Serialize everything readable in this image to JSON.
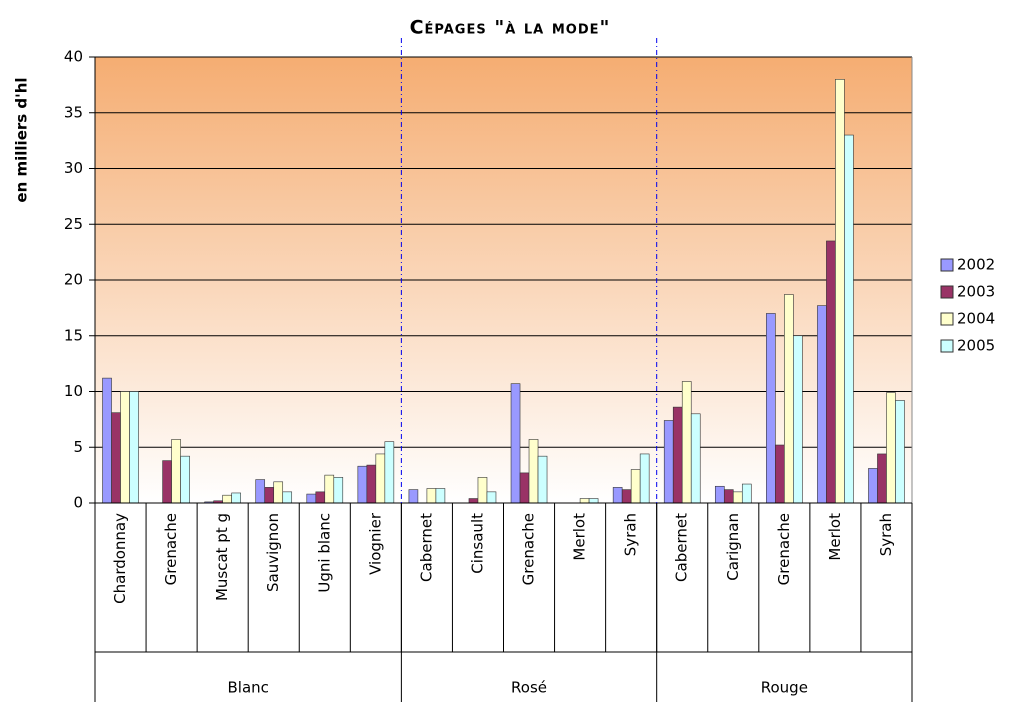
{
  "chart_data": {
    "type": "bar",
    "title": "Cépages \"à la mode\"",
    "y_label": "en milliers d'hl",
    "groups": [
      {
        "name": "Blanc",
        "categories": [
          "Chardonnay",
          "Grenache",
          "Muscat pt g",
          "Sauvignon",
          "Ugni blanc",
          "Viognier"
        ]
      },
      {
        "name": "Rosé",
        "categories": [
          "Cabernet",
          "Cinsault",
          "Grenache",
          "Merlot",
          "Syrah"
        ]
      },
      {
        "name": "Rouge",
        "categories": [
          "Cabernet",
          "Carignan",
          "Grenache",
          "Merlot",
          "Syrah"
        ]
      }
    ],
    "series": [
      {
        "name": "2002",
        "color": "#9999ff",
        "values": [
          11.2,
          0,
          0.1,
          2.1,
          0.8,
          3.3,
          1.2,
          0,
          10.7,
          0,
          1.4,
          7.4,
          1.5,
          17,
          17.7,
          3.1
        ]
      },
      {
        "name": "2003",
        "color": "#993366",
        "values": [
          8.1,
          3.8,
          0.2,
          1.4,
          1.0,
          3.4,
          0,
          0.4,
          2.7,
          0,
          1.2,
          8.6,
          1.2,
          5.2,
          23.5,
          4.4
        ]
      },
      {
        "name": "2004",
        "color": "#ffffcc",
        "values": [
          10,
          5.7,
          0.7,
          1.9,
          2.5,
          4.4,
          1.3,
          2.3,
          5.7,
          0.4,
          3.0,
          10.9,
          1.0,
          18.7,
          38,
          9.9
        ]
      },
      {
        "name": "2005",
        "color": "#ccffff",
        "values": [
          10,
          4.2,
          0.9,
          1.0,
          2.3,
          5.5,
          1.3,
          1.0,
          4.2,
          0.4,
          4.4,
          8.0,
          1.7,
          15,
          33,
          9.2
        ]
      }
    ],
    "ylim": [
      0,
      40
    ],
    "yticks": [
      0,
      5,
      10,
      15,
      20,
      25,
      30,
      35,
      40
    ],
    "grid": true,
    "legend": "right"
  }
}
